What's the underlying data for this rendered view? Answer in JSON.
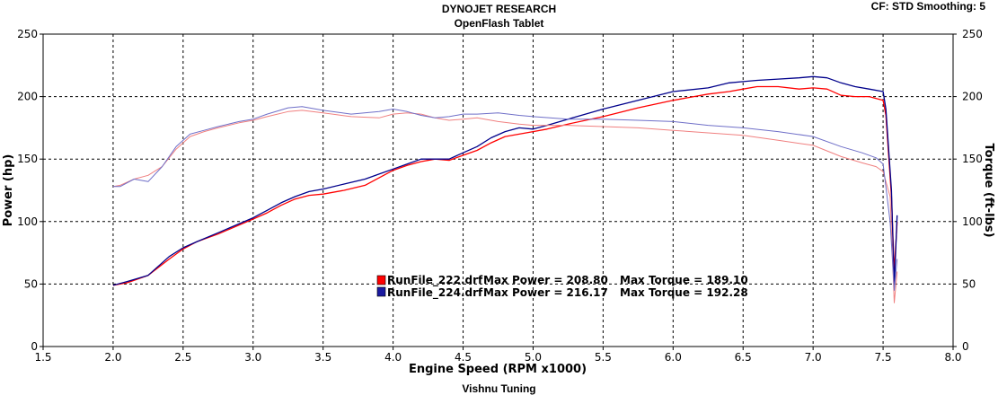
{
  "header": {
    "title": "DYNOJET RESEARCH",
    "subtitle": "OpenFlash Tablet",
    "cf_smoothing": "CF: STD  Smoothing: 5",
    "footer": "Vishnu Tuning"
  },
  "chart_data": {
    "type": "line",
    "xlabel": "Engine Speed (RPM x1000)",
    "ylabel_left": "Power (hp)",
    "ylabel_right": "Torque (ft-lbs)",
    "xlim": [
      1.5,
      8.0
    ],
    "ylim": [
      0,
      250
    ],
    "xticks": [
      "1.5",
      "2.0",
      "2.5",
      "3.0",
      "3.5",
      "4.0",
      "4.5",
      "5.0",
      "5.5",
      "6.0",
      "6.5",
      "7.0",
      "7.5",
      "8.0"
    ],
    "yticks": [
      "0",
      "50",
      "100",
      "150",
      "200",
      "250"
    ],
    "grid": true,
    "colors": {
      "run222": "#ff0000",
      "run224": "#00008b"
    },
    "legend": [
      {
        "name": "RunFile_222.drf",
        "max_power_label": "Max Power = 208.80",
        "max_torque_label": "Max Torque = 189.10",
        "color": "#ff0000"
      },
      {
        "name": "RunFile_224.drf",
        "max_power_label": "Max Power = 216.17",
        "max_torque_label": "Max Torque = 192.28",
        "color": "#00008b"
      }
    ],
    "series": [
      {
        "name": "RunFile_222 Power",
        "kind": "power",
        "color": "#ff0000",
        "x": [
          2.0,
          2.1,
          2.25,
          2.4,
          2.5,
          2.6,
          2.75,
          3.0,
          3.1,
          3.2,
          3.3,
          3.4,
          3.5,
          3.65,
          3.8,
          3.9,
          4.0,
          4.1,
          4.2,
          4.3,
          4.4,
          4.5,
          4.6,
          4.7,
          4.8,
          4.9,
          5.0,
          5.1,
          5.25,
          5.5,
          5.75,
          6.0,
          6.25,
          6.4,
          6.5,
          6.6,
          6.75,
          6.9,
          7.0,
          7.1,
          7.2,
          7.3,
          7.4,
          7.5,
          7.52,
          7.56,
          7.58,
          7.6
        ],
        "y": [
          49,
          51,
          57,
          70,
          78,
          84,
          90,
          102,
          107,
          113,
          118,
          121,
          122,
          125,
          129,
          135,
          141,
          145,
          148,
          150,
          149,
          153,
          157,
          163,
          168,
          170,
          172,
          174,
          178,
          184,
          191,
          197,
          202,
          204,
          206,
          208,
          208,
          206,
          207,
          206,
          201,
          200,
          200,
          197,
          185,
          120,
          60,
          100
        ]
      },
      {
        "name": "RunFile_224 Power",
        "kind": "power",
        "color": "#00008b",
        "x": [
          2.0,
          2.1,
          2.25,
          2.4,
          2.5,
          2.6,
          2.75,
          3.0,
          3.1,
          3.2,
          3.3,
          3.4,
          3.5,
          3.65,
          3.8,
          3.9,
          4.0,
          4.1,
          4.2,
          4.3,
          4.4,
          4.5,
          4.6,
          4.7,
          4.8,
          4.9,
          5.0,
          5.1,
          5.25,
          5.5,
          5.75,
          6.0,
          6.25,
          6.4,
          6.5,
          6.6,
          6.75,
          6.9,
          7.0,
          7.1,
          7.2,
          7.3,
          7.4,
          7.5,
          7.52,
          7.56,
          7.58,
          7.6
        ],
        "y": [
          49,
          52,
          57,
          72,
          79,
          84,
          91,
          103,
          109,
          115,
          120,
          124,
          126,
          130,
          134,
          138,
          142,
          146,
          150,
          150,
          150,
          155,
          160,
          167,
          172,
          175,
          174,
          177,
          182,
          190,
          197,
          204,
          207,
          211,
          212,
          213,
          214,
          215,
          216,
          215,
          211,
          208,
          206,
          204,
          190,
          125,
          48,
          105
        ]
      },
      {
        "name": "RunFile_222 Torque",
        "kind": "torque",
        "color": "#f08080",
        "x": [
          2.0,
          2.05,
          2.15,
          2.25,
          2.35,
          2.45,
          2.55,
          2.65,
          2.75,
          2.9,
          3.0,
          3.1,
          3.25,
          3.35,
          3.5,
          3.7,
          3.9,
          4.0,
          4.1,
          4.2,
          4.3,
          4.4,
          4.5,
          4.6,
          4.75,
          4.9,
          5.0,
          5.25,
          5.5,
          5.75,
          6.0,
          6.25,
          6.5,
          6.75,
          7.0,
          7.2,
          7.35,
          7.45,
          7.5,
          7.55,
          7.58,
          7.6
        ],
        "y": [
          128,
          129,
          134,
          137,
          144,
          158,
          168,
          172,
          175,
          179,
          181,
          184,
          188,
          189,
          187,
          184,
          183,
          186,
          187,
          186,
          183,
          181,
          182,
          183,
          180,
          178,
          177,
          177,
          176,
          175,
          173,
          171,
          169,
          165,
          161,
          152,
          147,
          144,
          140,
          120,
          35,
          60
        ]
      },
      {
        "name": "RunFile_224 Torque",
        "kind": "torque",
        "color": "#6f6fc8",
        "x": [
          2.0,
          2.05,
          2.15,
          2.25,
          2.35,
          2.45,
          2.55,
          2.65,
          2.75,
          2.9,
          3.0,
          3.1,
          3.25,
          3.35,
          3.5,
          3.7,
          3.9,
          4.0,
          4.1,
          4.2,
          4.3,
          4.4,
          4.5,
          4.6,
          4.75,
          4.9,
          5.0,
          5.25,
          5.5,
          5.75,
          6.0,
          6.25,
          6.5,
          6.75,
          7.0,
          7.2,
          7.35,
          7.45,
          7.5,
          7.55,
          7.58,
          7.6
        ],
        "y": [
          128,
          128,
          134,
          132,
          144,
          160,
          170,
          173,
          176,
          180,
          182,
          186,
          191,
          192,
          189,
          186,
          188,
          190,
          188,
          185,
          183,
          184,
          186,
          186,
          187,
          185,
          184,
          182,
          182,
          181,
          180,
          177,
          175,
          172,
          168,
          160,
          155,
          151,
          146,
          100,
          45,
          70
        ]
      }
    ]
  }
}
